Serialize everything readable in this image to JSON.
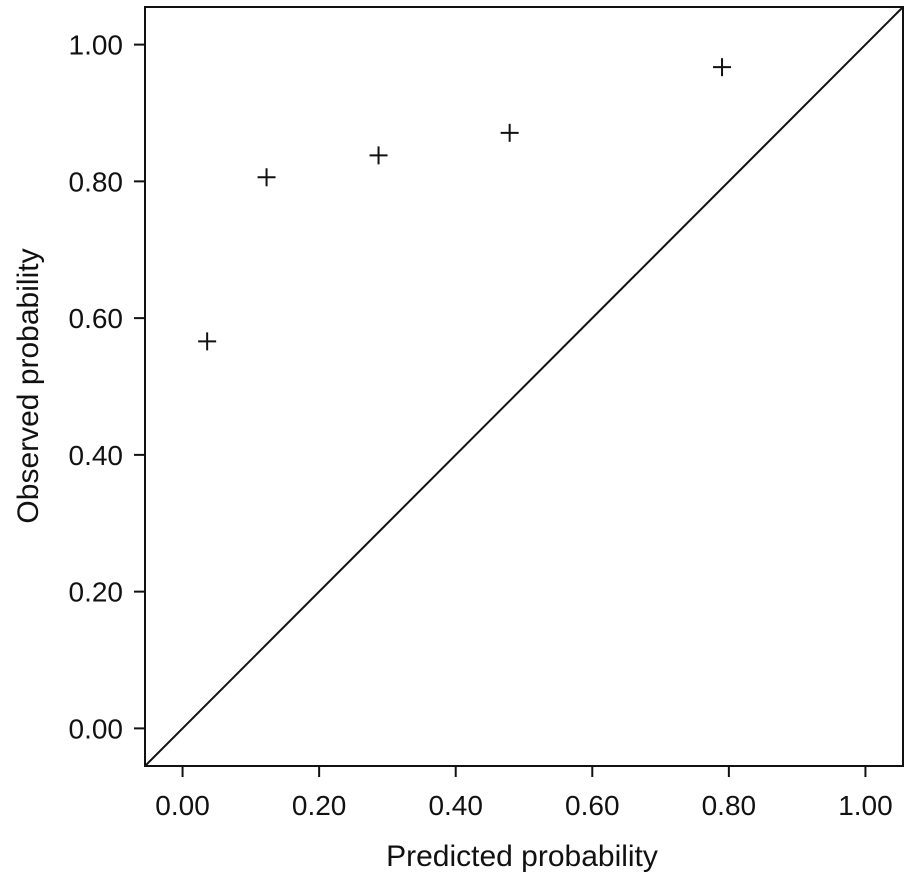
{
  "chart_data": {
    "type": "scatter",
    "title": "",
    "xlabel": "Predicted probability",
    "ylabel": "Observed probability",
    "xlim": [
      -0.055,
      1.055
    ],
    "ylim": [
      -0.055,
      1.055
    ],
    "xticks": [
      0.0,
      0.2,
      0.4,
      0.6,
      0.8,
      1.0
    ],
    "yticks": [
      0.0,
      0.2,
      0.4,
      0.6,
      0.8,
      1.0
    ],
    "xtick_labels": [
      "0.00",
      "0.20",
      "0.40",
      "0.60",
      "0.80",
      "1.00"
    ],
    "ytick_labels": [
      "0.00",
      "0.20",
      "0.40",
      "0.60",
      "0.80",
      "1.00"
    ],
    "grid": false,
    "marker": "plus",
    "reference_line": "diagonal",
    "points": [
      {
        "x": 0.036,
        "y": 0.566
      },
      {
        "x": 0.123,
        "y": 0.806
      },
      {
        "x": 0.287,
        "y": 0.838
      },
      {
        "x": 0.479,
        "y": 0.871
      },
      {
        "x": 0.79,
        "y": 0.967
      }
    ]
  }
}
